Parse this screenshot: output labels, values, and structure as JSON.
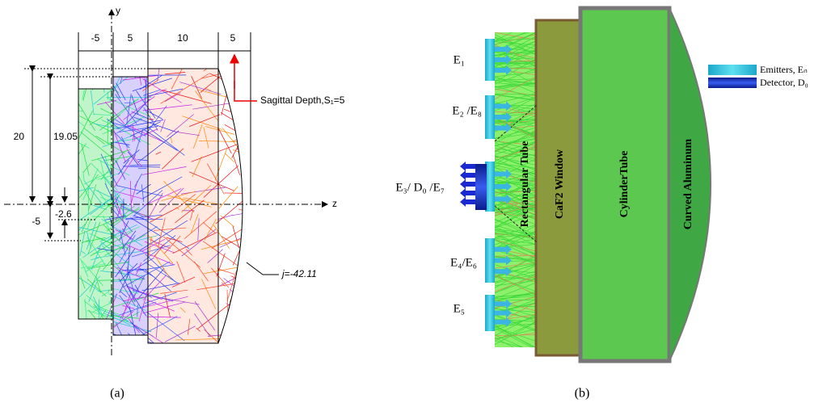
{
  "panel_a": {
    "axis_y": "y",
    "axis_z": "z",
    "top_dimensions": [
      "-5",
      "5",
      "10",
      "5"
    ],
    "left_dimensions": [
      "20",
      "19.05",
      "-2.6",
      "-5"
    ],
    "sagittal_depth": "Sagittal Depth,S₁=5",
    "curvature": "j=-42.11",
    "caption": "(a)"
  },
  "panel_b": {
    "emitters": [
      "E₁",
      "E₂ /E₈",
      "E₃/ D₀ /E₇",
      "E₄/E₆",
      "E₅"
    ],
    "parts": [
      "Rectangular Tube",
      "CaF2 Window",
      "CylinderTube",
      "Curved Aluminum"
    ],
    "legend": [
      "Emitters, Eₙ",
      "Detector, D₀"
    ],
    "caption": "(b)"
  }
}
